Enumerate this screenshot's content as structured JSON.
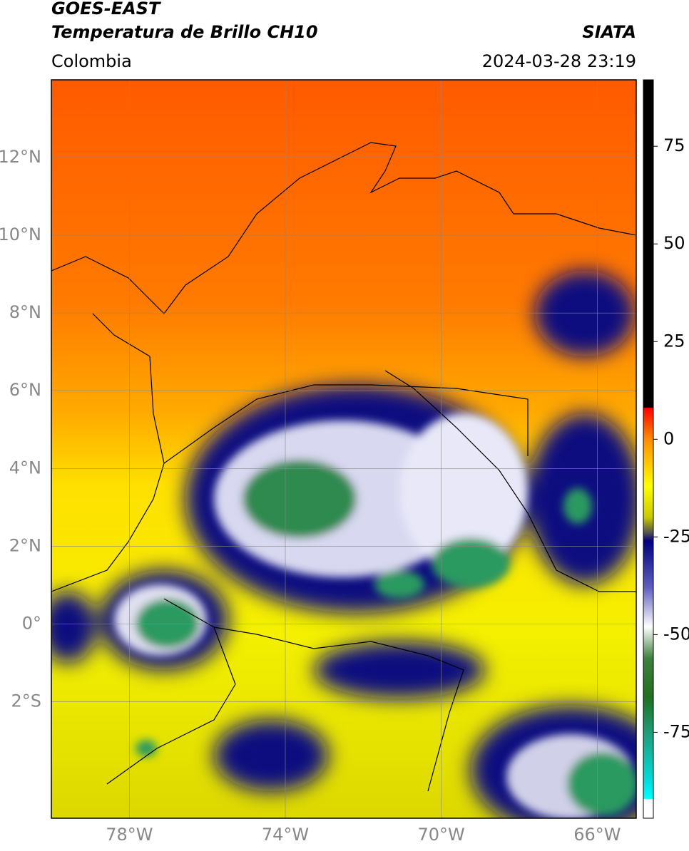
{
  "header": {
    "title": "GOES-EAST",
    "subtitle": "Temperatura de Brillo CH10",
    "region": "Colombia",
    "source": "SIATA",
    "datetime": "2024-03-28 23:19"
  },
  "map": {
    "xlim": [
      -80,
      -65
    ],
    "ylim": [
      -5,
      14
    ],
    "grid": true,
    "xticks": [
      {
        "value": -78,
        "label": "78°W"
      },
      {
        "value": -74,
        "label": "74°W"
      },
      {
        "value": -70,
        "label": "70°W"
      },
      {
        "value": -66,
        "label": "66°W"
      }
    ],
    "yticks": [
      {
        "value": 12,
        "label": "12°N"
      },
      {
        "value": 10,
        "label": "10°N"
      },
      {
        "value": 8,
        "label": "8°N"
      },
      {
        "value": 6,
        "label": "6°N"
      },
      {
        "value": 4,
        "label": "4°N"
      },
      {
        "value": 2,
        "label": "2°N"
      },
      {
        "value": 0,
        "label": "0°"
      },
      {
        "value": -2,
        "label": "2°S"
      }
    ]
  },
  "colorbar": {
    "lim": [
      -97,
      92
    ],
    "ticks": [
      75,
      50,
      25,
      0,
      -25,
      -50,
      -75
    ],
    "stops": [
      {
        "value": 92,
        "color": "#000000"
      },
      {
        "value": 8.1,
        "color": "#000000"
      },
      {
        "value": 8,
        "color": "#ff0000"
      },
      {
        "value": 0,
        "color": "#ff8c00"
      },
      {
        "value": -12,
        "color": "#ffff00"
      },
      {
        "value": -20,
        "color": "#c8c800"
      },
      {
        "value": -24,
        "color": "#505050"
      },
      {
        "value": -26,
        "color": "#000080"
      },
      {
        "value": -38,
        "color": "#6060c0"
      },
      {
        "value": -48,
        "color": "#ffffff"
      },
      {
        "value": -56,
        "color": "#408040"
      },
      {
        "value": -66,
        "color": "#207020"
      },
      {
        "value": -76,
        "color": "#20a080"
      },
      {
        "value": -88,
        "color": "#00e0e0"
      },
      {
        "value": -92,
        "color": "#00ffff"
      },
      {
        "value": -92.1,
        "color": "#ffffff"
      },
      {
        "value": -97,
        "color": "#ffffff"
      }
    ]
  }
}
